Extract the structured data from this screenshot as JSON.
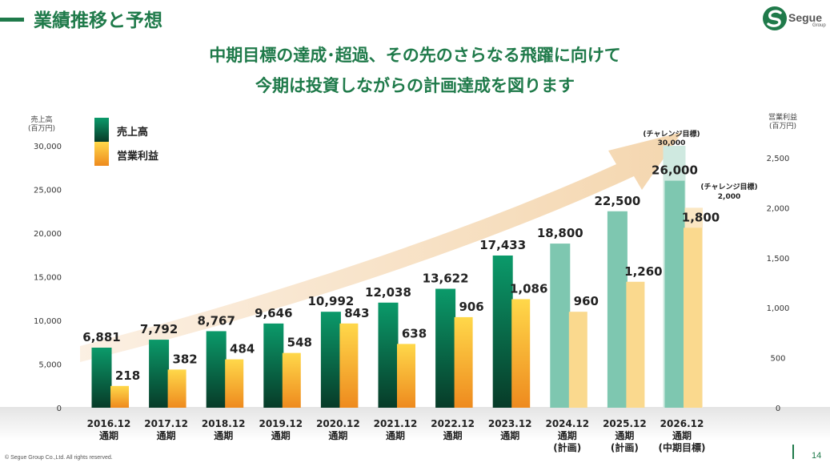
{
  "header": {
    "title": "業績推移と予想",
    "logo_text": "Segue",
    "logo_sub": "Group"
  },
  "subtitle": {
    "line1": "中期目標の達成･超過、その先のさらなる飛躍に向けて",
    "line2": "今期は投資しながらの計画達成を図ります"
  },
  "footer": {
    "copyright": "© Segue Group Co.,Ltd. All rights reserved.",
    "page_number": "14"
  },
  "colors": {
    "brand_green": "#1f7a4a",
    "sales_actual_top": "#0b9a6a",
    "sales_actual_bottom": "#073b28",
    "sales_plan": "#7ec7b0",
    "profit_top": "#ffd84a",
    "profit_bottom": "#ee8a1e",
    "profit_plan": "#fad98e",
    "arrow": "#f3d2a6"
  },
  "chart_data": {
    "type": "bar",
    "categories": [
      "2016.12\n通期",
      "2017.12\n通期",
      "2018.12\n通期",
      "2019.12\n通期",
      "2020.12\n通期",
      "2021.12\n通期",
      "2022.12\n通期",
      "2023.12\n通期",
      "2024.12\n通期\n(計画)",
      "2025.12\n通期\n(計画)",
      "2026.12\n通期\n(中期目標)"
    ],
    "left_axis": {
      "label": "売上高\n(百万円)",
      "ylim": [
        0,
        30000
      ],
      "ticks": [
        "0",
        "5,000",
        "10,000",
        "15,000",
        "20,000",
        "25,000",
        "30,000"
      ]
    },
    "right_axis": {
      "label": "営業利益\n(百万円)",
      "ylim": [
        0,
        2500
      ],
      "ticks": [
        "0",
        "500",
        "1,000",
        "1,500",
        "2,000",
        "2,500"
      ]
    },
    "legend": {
      "placement": "top-left"
    },
    "series": [
      {
        "name": "売上高",
        "axis": "left",
        "values": [
          6881,
          7792,
          8767,
          9646,
          10992,
          12038,
          13622,
          17433,
          18800,
          22500,
          26000
        ],
        "labels": [
          "6,881",
          "7,792",
          "8,767",
          "9,646",
          "10,992",
          "12,038",
          "13,622",
          "17,433",
          "18,800",
          "22,500",
          "26,000"
        ]
      },
      {
        "name": "営業利益",
        "axis": "right",
        "values": [
          218,
          382,
          484,
          548,
          843,
          638,
          906,
          1086,
          960,
          1260,
          1800
        ],
        "labels": [
          "218",
          "382",
          "484",
          "548",
          "843",
          "638",
          "906",
          "1,086",
          "960",
          "1,260",
          "1,800"
        ]
      }
    ],
    "plan_from_index": 8,
    "challenge_targets": {
      "sales": {
        "value": 30000,
        "label_top": "(チャレンジ目標",
        "label_value": "30,000",
        "label_close": ")"
      },
      "profit": {
        "value": 2000,
        "label_top": "(チャレンジ目標",
        "label_value": "2,000",
        "label_close": ")"
      }
    }
  }
}
